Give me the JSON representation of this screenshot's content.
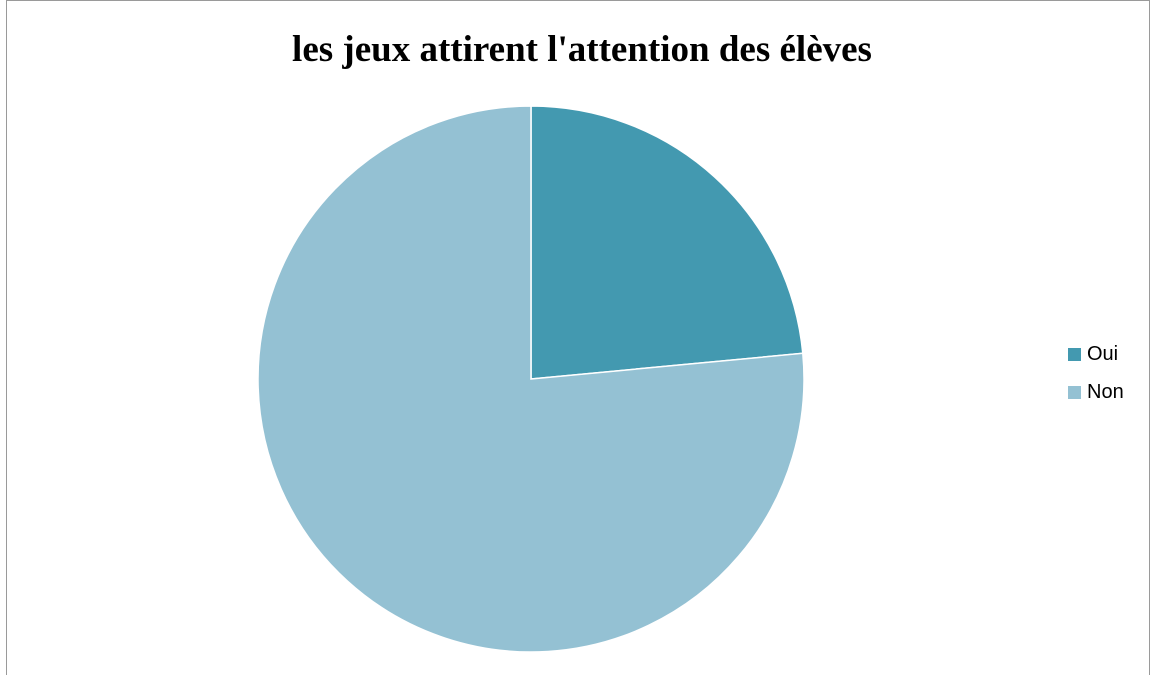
{
  "chart_data": {
    "type": "pie",
    "title": "les jeux attirent l'attention des élèves",
    "categories": [
      "Oui",
      "Non"
    ],
    "values": [
      23.5,
      76.5
    ],
    "colors": [
      "#4399b0",
      "#94c1d3"
    ],
    "start_angle_deg": 0,
    "direction": "clockwise",
    "legend_position": "right"
  }
}
